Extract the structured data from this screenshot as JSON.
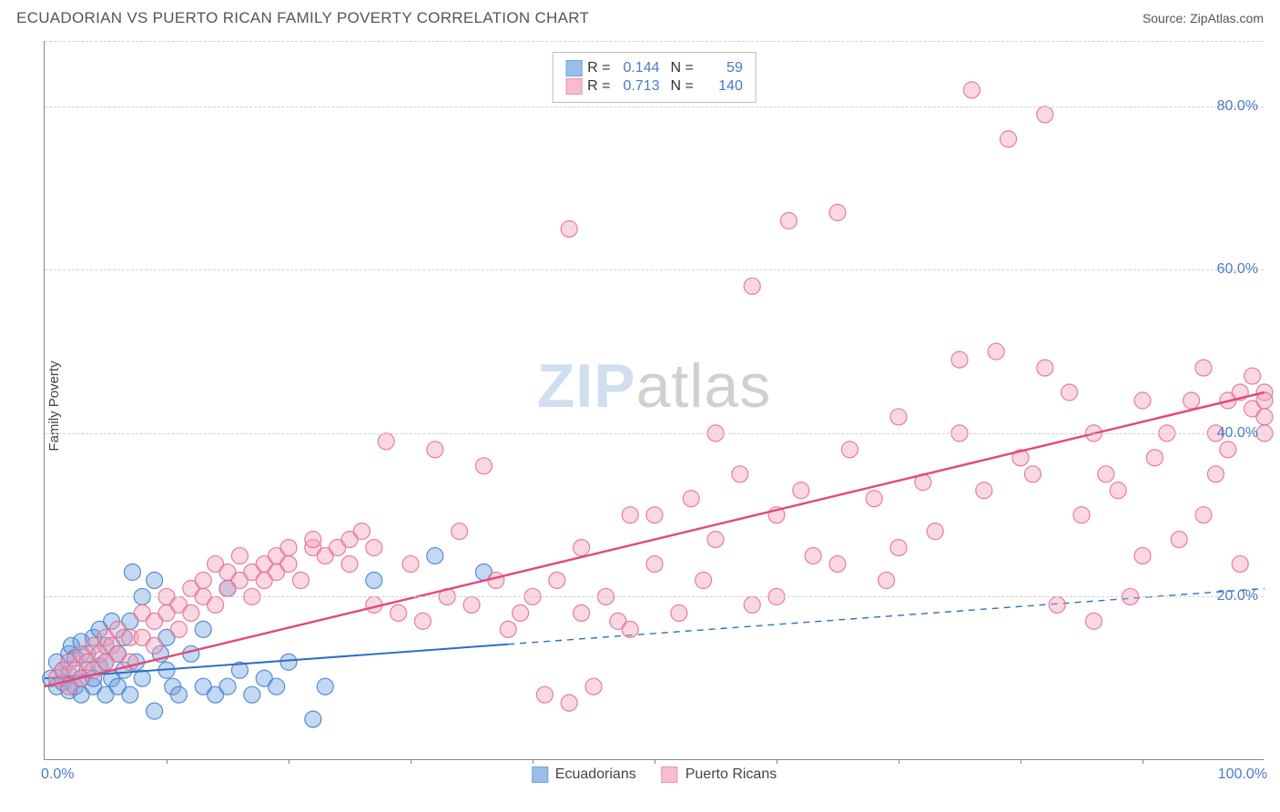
{
  "header": {
    "title": "ECUADORIAN VS PUERTO RICAN FAMILY POVERTY CORRELATION CHART",
    "source_prefix": "Source: ",
    "source": "ZipAtlas.com"
  },
  "chart": {
    "type": "scatter",
    "ylabel": "Family Poverty",
    "background_color": "#ffffff",
    "grid_color": "#d0d0d0",
    "axis_color": "#888888",
    "label_color": "#4a7bc8",
    "xlim": [
      0,
      100
    ],
    "ylim": [
      0,
      88
    ],
    "yticks": [
      20,
      40,
      60,
      80
    ],
    "ytick_labels": [
      "20.0%",
      "40.0%",
      "60.0%",
      "80.0%"
    ],
    "xticks": [
      10,
      20,
      30,
      40,
      50,
      60,
      70,
      80,
      90
    ],
    "xtick_corners": {
      "left": "0.0%",
      "right": "100.0%"
    },
    "watermark": {
      "zip": "ZIP",
      "atlas": "atlas"
    },
    "marker_radius": 9,
    "marker_opacity": 0.42,
    "marker_stroke_opacity": 0.85,
    "series": [
      {
        "name": "Ecuadorians",
        "color_fill": "#6fa3e0",
        "color_stroke": "#3d7cc9",
        "r_label": "R =",
        "r_value": "0.144",
        "n_label": "N =",
        "n_value": "59",
        "trend": {
          "x1": 0,
          "y1": 10,
          "x2": 100,
          "y2": 21,
          "solid_until_x": 38,
          "color": "#2e6fc2",
          "width": 2
        },
        "points": [
          [
            0.5,
            10
          ],
          [
            1,
            9
          ],
          [
            1,
            12
          ],
          [
            1.5,
            11
          ],
          [
            1.5,
            9.5
          ],
          [
            2,
            10.5
          ],
          [
            2,
            13
          ],
          [
            2,
            8.5
          ],
          [
            2.2,
            14
          ],
          [
            2.5,
            12.5
          ],
          [
            2.5,
            9
          ],
          [
            3,
            10
          ],
          [
            3,
            14.5
          ],
          [
            3,
            8
          ],
          [
            3.5,
            13
          ],
          [
            3.5,
            11
          ],
          [
            4,
            15
          ],
          [
            4,
            9
          ],
          [
            4,
            10
          ],
          [
            4.5,
            16
          ],
          [
            4.5,
            11.5
          ],
          [
            5,
            12
          ],
          [
            5,
            14
          ],
          [
            5,
            8
          ],
          [
            5.5,
            10
          ],
          [
            5.5,
            17
          ],
          [
            6,
            13
          ],
          [
            6,
            9
          ],
          [
            6.5,
            15
          ],
          [
            6.5,
            11
          ],
          [
            7,
            8
          ],
          [
            7,
            17
          ],
          [
            7.2,
            23
          ],
          [
            7.5,
            12
          ],
          [
            8,
            10
          ],
          [
            8,
            20
          ],
          [
            9,
            22
          ],
          [
            9,
            6
          ],
          [
            9.5,
            13
          ],
          [
            10,
            15
          ],
          [
            10,
            11
          ],
          [
            10.5,
            9
          ],
          [
            11,
            8
          ],
          [
            12,
            13
          ],
          [
            13,
            9
          ],
          [
            13,
            16
          ],
          [
            14,
            8
          ],
          [
            15,
            9
          ],
          [
            15,
            21
          ],
          [
            16,
            11
          ],
          [
            17,
            8
          ],
          [
            18,
            10
          ],
          [
            19,
            9
          ],
          [
            20,
            12
          ],
          [
            22,
            5
          ],
          [
            23,
            9
          ],
          [
            27,
            22
          ],
          [
            32,
            25
          ],
          [
            36,
            23
          ]
        ]
      },
      {
        "name": "Puerto Ricans",
        "color_fill": "#f4a0b9",
        "color_stroke": "#e26a8f",
        "r_label": "R =",
        "r_value": "0.713",
        "n_label": "N =",
        "n_value": "140",
        "trend": {
          "x1": 0,
          "y1": 9,
          "x2": 100,
          "y2": 45,
          "solid_until_x": 100,
          "color": "#e04b7a",
          "width": 2.5
        },
        "points": [
          [
            1,
            10
          ],
          [
            1.5,
            11
          ],
          [
            2,
            9
          ],
          [
            2,
            12
          ],
          [
            2.5,
            11
          ],
          [
            3,
            10
          ],
          [
            3,
            13
          ],
          [
            3.5,
            12
          ],
          [
            4,
            11
          ],
          [
            4,
            14
          ],
          [
            4.5,
            13
          ],
          [
            5,
            12
          ],
          [
            5,
            15
          ],
          [
            5.5,
            14
          ],
          [
            6,
            13
          ],
          [
            6,
            16
          ],
          [
            7,
            15
          ],
          [
            7,
            12
          ],
          [
            8,
            15
          ],
          [
            8,
            18
          ],
          [
            9,
            17
          ],
          [
            9,
            14
          ],
          [
            10,
            18
          ],
          [
            10,
            20
          ],
          [
            11,
            19
          ],
          [
            11,
            16
          ],
          [
            12,
            21
          ],
          [
            12,
            18
          ],
          [
            13,
            20
          ],
          [
            13,
            22
          ],
          [
            14,
            19
          ],
          [
            14,
            24
          ],
          [
            15,
            21
          ],
          [
            15,
            23
          ],
          [
            16,
            22
          ],
          [
            16,
            25
          ],
          [
            17,
            23
          ],
          [
            17,
            20
          ],
          [
            18,
            24
          ],
          [
            18,
            22
          ],
          [
            19,
            25
          ],
          [
            19,
            23
          ],
          [
            20,
            26
          ],
          [
            20,
            24
          ],
          [
            21,
            22
          ],
          [
            22,
            26
          ],
          [
            22,
            27
          ],
          [
            23,
            25
          ],
          [
            24,
            26
          ],
          [
            25,
            27
          ],
          [
            25,
            24
          ],
          [
            26,
            28
          ],
          [
            27,
            19
          ],
          [
            27,
            26
          ],
          [
            28,
            39
          ],
          [
            29,
            18
          ],
          [
            30,
            24
          ],
          [
            31,
            17
          ],
          [
            32,
            38
          ],
          [
            33,
            20
          ],
          [
            34,
            28
          ],
          [
            35,
            19
          ],
          [
            36,
            36
          ],
          [
            37,
            22
          ],
          [
            38,
            16
          ],
          [
            39,
            18
          ],
          [
            40,
            20
          ],
          [
            41,
            8
          ],
          [
            42,
            22
          ],
          [
            43,
            7
          ],
          [
            43,
            65
          ],
          [
            44,
            26
          ],
          [
            44,
            18
          ],
          [
            45,
            9
          ],
          [
            46,
            20
          ],
          [
            47,
            17
          ],
          [
            48,
            30
          ],
          [
            50,
            24
          ],
          [
            52,
            18
          ],
          [
            53,
            32
          ],
          [
            54,
            22
          ],
          [
            55,
            27
          ],
          [
            57,
            35
          ],
          [
            58,
            19
          ],
          [
            58,
            58
          ],
          [
            60,
            30
          ],
          [
            61,
            66
          ],
          [
            62,
            33
          ],
          [
            63,
            25
          ],
          [
            65,
            67
          ],
          [
            66,
            38
          ],
          [
            68,
            32
          ],
          [
            69,
            22
          ],
          [
            70,
            42
          ],
          [
            72,
            34
          ],
          [
            73,
            28
          ],
          [
            75,
            40
          ],
          [
            75,
            49
          ],
          [
            76,
            82
          ],
          [
            77,
            33
          ],
          [
            78,
            50
          ],
          [
            79,
            76
          ],
          [
            80,
            37
          ],
          [
            81,
            35
          ],
          [
            82,
            79
          ],
          [
            82,
            48
          ],
          [
            83,
            19
          ],
          [
            84,
            45
          ],
          [
            85,
            30
          ],
          [
            86,
            40
          ],
          [
            86,
            17
          ],
          [
            87,
            35
          ],
          [
            88,
            33
          ],
          [
            89,
            20
          ],
          [
            90,
            44
          ],
          [
            90,
            25
          ],
          [
            91,
            37
          ],
          [
            92,
            40
          ],
          [
            93,
            27
          ],
          [
            94,
            44
          ],
          [
            95,
            30
          ],
          [
            95,
            48
          ],
          [
            96,
            40
          ],
          [
            96,
            35
          ],
          [
            97,
            44
          ],
          [
            97,
            38
          ],
          [
            98,
            45
          ],
          [
            98,
            24
          ],
          [
            99,
            43
          ],
          [
            99,
            47
          ],
          [
            100,
            45
          ],
          [
            100,
            42
          ],
          [
            100,
            40
          ],
          [
            100,
            44
          ],
          [
            60,
            20
          ],
          [
            65,
            24
          ],
          [
            70,
            26
          ],
          [
            48,
            16
          ],
          [
            50,
            30
          ],
          [
            55,
            40
          ]
        ]
      }
    ]
  }
}
